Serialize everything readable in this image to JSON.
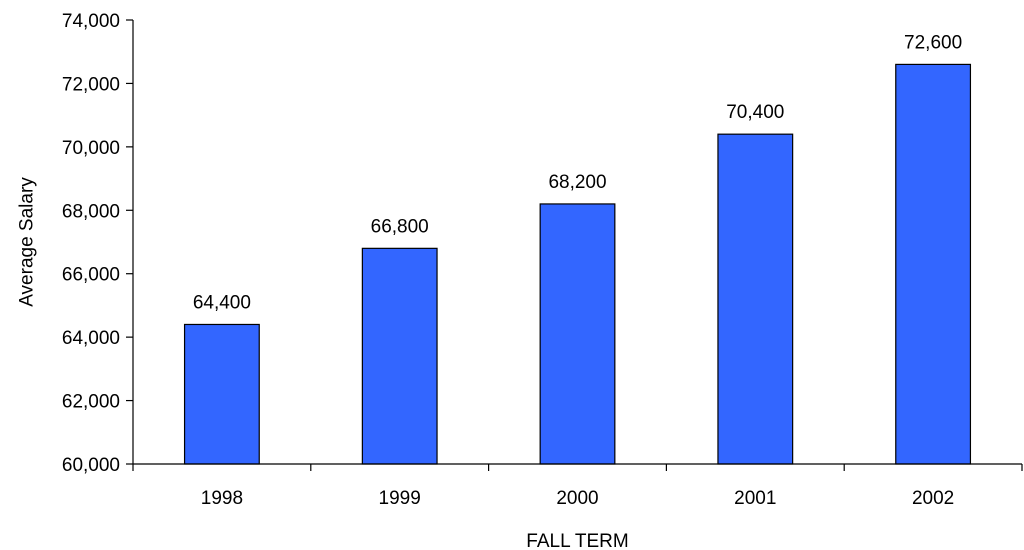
{
  "chart_data": {
    "type": "bar",
    "title": "",
    "xlabel": "FALL TERM",
    "ylabel": "Average Salary",
    "categories": [
      "1998",
      "1999",
      "2000",
      "2001",
      "2002"
    ],
    "values": [
      64400,
      66800,
      68200,
      70400,
      72600
    ],
    "data_labels": [
      "64,400",
      "66,800",
      "68,200",
      "70,400",
      "72,600"
    ],
    "ylim": [
      60000,
      74000
    ],
    "yticks": [
      60000,
      62000,
      64000,
      66000,
      68000,
      70000,
      72000,
      74000
    ],
    "ytick_labels": [
      "60,000",
      "62,000",
      "64,000",
      "66,000",
      "68,000",
      "70,000",
      "72,000",
      "74,000"
    ],
    "grid": false,
    "bar_color": "#3366FF",
    "legend": "none"
  }
}
